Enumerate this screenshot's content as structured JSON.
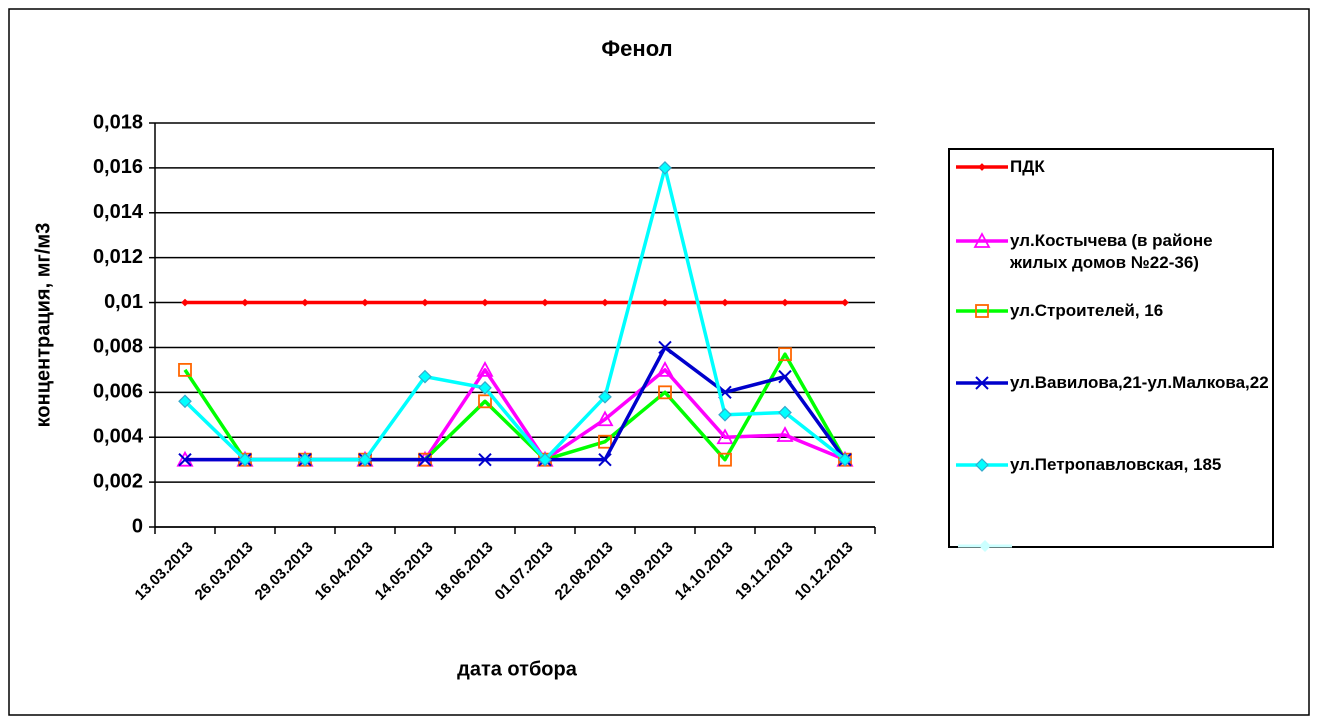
{
  "chart_data": {
    "type": "line",
    "title": "Фенол",
    "y_label": "концентрация, мг/м3",
    "x_label": "дата отбора",
    "categories": [
      "13.03.2013",
      "26.03.2013",
      "29.03.2013",
      "16.04.2013",
      "14.05.2013",
      "18.06.2013",
      "01.07.2013",
      "22.08.2013",
      "19.09.2013",
      "14.10.2013",
      "19.11.2013",
      "10.12.2013"
    ],
    "ylim": [
      0,
      0.018
    ],
    "yticks": [
      0,
      {
        "value": 0.002,
        "label": "0,002"
      },
      {
        "value": 0.004,
        "label": "0,004"
      },
      {
        "value": 0.006,
        "label": "0,006"
      },
      {
        "value": 0.008,
        "label": "0,008"
      },
      {
        "value": 0.01,
        "label": "0,01"
      },
      {
        "value": 0.012,
        "label": "0,012"
      },
      {
        "value": 0.014,
        "label": "0,014"
      },
      {
        "value": 0.016,
        "label": "0,016"
      },
      {
        "value": 0.018,
        "label": "0,018"
      }
    ],
    "grid": true,
    "legend": "right",
    "series": [
      {
        "name": "ПДК",
        "color": "#ff0000",
        "marker": "diamond",
        "marker_color": "#ff0000",
        "values": [
          0.01,
          0.01,
          0.01,
          0.01,
          0.01,
          0.01,
          0.01,
          0.01,
          0.01,
          0.01,
          0.01,
          0.01
        ]
      },
      {
        "name": "ул.Костычева (в районе жилых домов №22-36)",
        "color": "#ff00ff",
        "marker": "triangle",
        "marker_color": "#ff00ff",
        "values": [
          0.003,
          0.003,
          0.003,
          0.003,
          0.003,
          0.007,
          0.003,
          0.0048,
          0.007,
          0.004,
          0.0041,
          0.003
        ]
      },
      {
        "name": "ул.Строителей, 16",
        "color": "#00ff00",
        "marker": "square",
        "marker_color": "#ff6600",
        "values": [
          0.007,
          0.003,
          0.003,
          0.003,
          0.003,
          0.0056,
          0.003,
          0.0038,
          0.006,
          0.003,
          0.0077,
          0.003
        ]
      },
      {
        "name": "ул.Вавилова,21-ул.Малкова,22",
        "color": "#0000cc",
        "marker": "x",
        "marker_color": "#0000cc",
        "values": [
          0.003,
          0.003,
          0.003,
          0.003,
          0.003,
          0.003,
          0.003,
          0.003,
          0.008,
          0.006,
          0.0067,
          0.003
        ]
      },
      {
        "name": "ул.Петропавловская, 185",
        "color": "#00ffff",
        "marker": "diamond",
        "marker_color": "#33aacc",
        "values": [
          0.0056,
          0.003,
          0.003,
          0.003,
          0.0067,
          0.0062,
          0.003,
          0.0058,
          0.016,
          0.005,
          0.0051,
          0.003
        ]
      }
    ]
  }
}
